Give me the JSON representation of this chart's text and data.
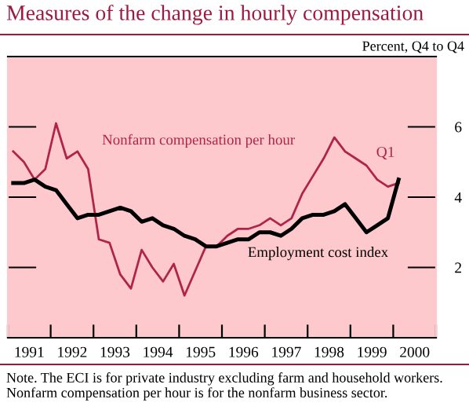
{
  "chart_data": {
    "type": "line",
    "title": "Measures of the change in hourly compensation",
    "subtitle": "Percent, Q4 to Q4",
    "x": [
      1991.125,
      1991.375,
      1991.625,
      1991.875,
      1992.125,
      1992.375,
      1992.625,
      1992.875,
      1993.125,
      1993.375,
      1993.625,
      1993.875,
      1994.125,
      1994.375,
      1994.625,
      1994.875,
      1995.125,
      1995.375,
      1995.625,
      1995.875,
      1996.125,
      1996.375,
      1996.625,
      1996.875,
      1997.125,
      1997.375,
      1997.625,
      1997.875,
      1998.125,
      1998.375,
      1998.625,
      1998.875,
      1999.125,
      1999.375,
      1999.625,
      1999.875,
      2000.125
    ],
    "series": [
      {
        "name": "Nonfarm compensation per hour",
        "color": "#b0244a",
        "values": [
          5.3,
          5.0,
          4.5,
          4.8,
          6.1,
          5.1,
          5.3,
          4.8,
          2.8,
          2.7,
          1.8,
          1.4,
          2.5,
          2.0,
          1.6,
          2.1,
          1.2,
          1.9,
          2.6,
          2.6,
          2.9,
          3.1,
          3.1,
          3.2,
          3.4,
          3.2,
          3.4,
          4.1,
          4.6,
          5.1,
          5.7,
          5.3,
          5.1,
          4.9,
          4.5,
          4.3,
          4.4
        ]
      },
      {
        "name": "Employment cost index",
        "color": "#000000",
        "values": [
          4.4,
          4.4,
          4.5,
          4.3,
          4.2,
          3.8,
          3.4,
          3.5,
          3.5,
          3.6,
          3.7,
          3.6,
          3.3,
          3.4,
          3.2,
          3.1,
          2.9,
          2.8,
          2.6,
          2.6,
          2.7,
          2.8,
          2.8,
          3.0,
          3.0,
          2.9,
          3.1,
          3.4,
          3.5,
          3.5,
          3.6,
          3.8,
          3.4,
          3.0,
          3.2,
          3.4,
          4.5
        ]
      }
    ],
    "xlim": [
      1991,
      2001
    ],
    "xticks": [
      {
        "value": 1991,
        "label": null
      },
      {
        "value": 1992,
        "label": null
      },
      {
        "value": 1993,
        "label": null
      },
      {
        "value": 1994,
        "label": null
      },
      {
        "value": 1995,
        "label": null
      },
      {
        "value": 1996,
        "label": null
      },
      {
        "value": 1997,
        "label": null
      },
      {
        "value": 1998,
        "label": null
      },
      {
        "value": 1999,
        "label": null
      },
      {
        "value": 2000,
        "label": null
      },
      {
        "value": 2001,
        "label": null
      },
      {
        "value": 1991.5,
        "label": "1991"
      },
      {
        "value": 1992.5,
        "label": "1992"
      },
      {
        "value": 1993.5,
        "label": "1993"
      },
      {
        "value": 1994.5,
        "label": "1994"
      },
      {
        "value": 1995.5,
        "label": "1995"
      },
      {
        "value": 1996.5,
        "label": "1996"
      },
      {
        "value": 1997.5,
        "label": "1997"
      },
      {
        "value": 1998.5,
        "label": "1998"
      },
      {
        "value": 1999.5,
        "label": "1999"
      },
      {
        "value": 2000.5,
        "label": "2000"
      }
    ],
    "ylim": [
      0,
      8
    ],
    "yticks": [
      2,
      4,
      6
    ],
    "grid": false,
    "legend": false,
    "annotations": [
      {
        "text": "Q1",
        "x": 2000.125,
        "y": 4.4
      },
      "Note. The ECI is for private industry excluding farm and household workers. Nonfarm compensation per hour is for the nonfarm business sector."
    ]
  }
}
